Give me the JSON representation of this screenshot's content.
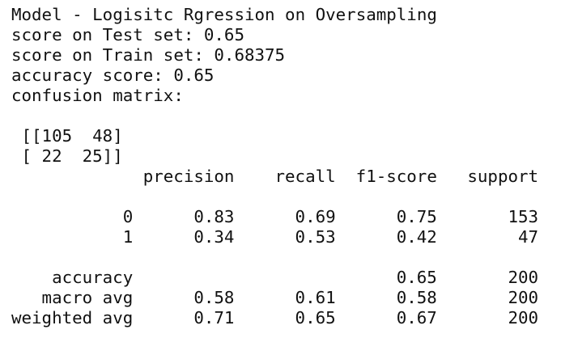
{
  "output": {
    "title": "Model - Logisitc Rgression on Oversampling",
    "test_score": "score on Test set: 0.65",
    "train_score": "score on Train set: 0.68375",
    "accuracy_score": "accuracy score: 0.65",
    "confusion_label": "confusion matrix:",
    "confusion_matrix_lines": [
      " [[105  48]",
      " [ 22  25]]"
    ]
  },
  "report": {
    "headers": {
      "precision": "precision",
      "recall": "recall",
      "f1": "f1-score",
      "support": "support"
    },
    "class_rows": [
      {
        "label": "0",
        "precision": "0.83",
        "recall": "0.69",
        "f1": "0.75",
        "support": "153"
      },
      {
        "label": "1",
        "precision": "0.34",
        "recall": "0.53",
        "f1": "0.42",
        "support": "47"
      }
    ],
    "accuracy_row": {
      "label": "accuracy",
      "f1": "0.65",
      "support": "200"
    },
    "avg_rows": [
      {
        "label": "macro avg",
        "precision": "0.58",
        "recall": "0.61",
        "f1": "0.58",
        "support": "200"
      },
      {
        "label": "weighted avg",
        "precision": "0.71",
        "recall": "0.65",
        "f1": "0.67",
        "support": "200"
      }
    ]
  }
}
